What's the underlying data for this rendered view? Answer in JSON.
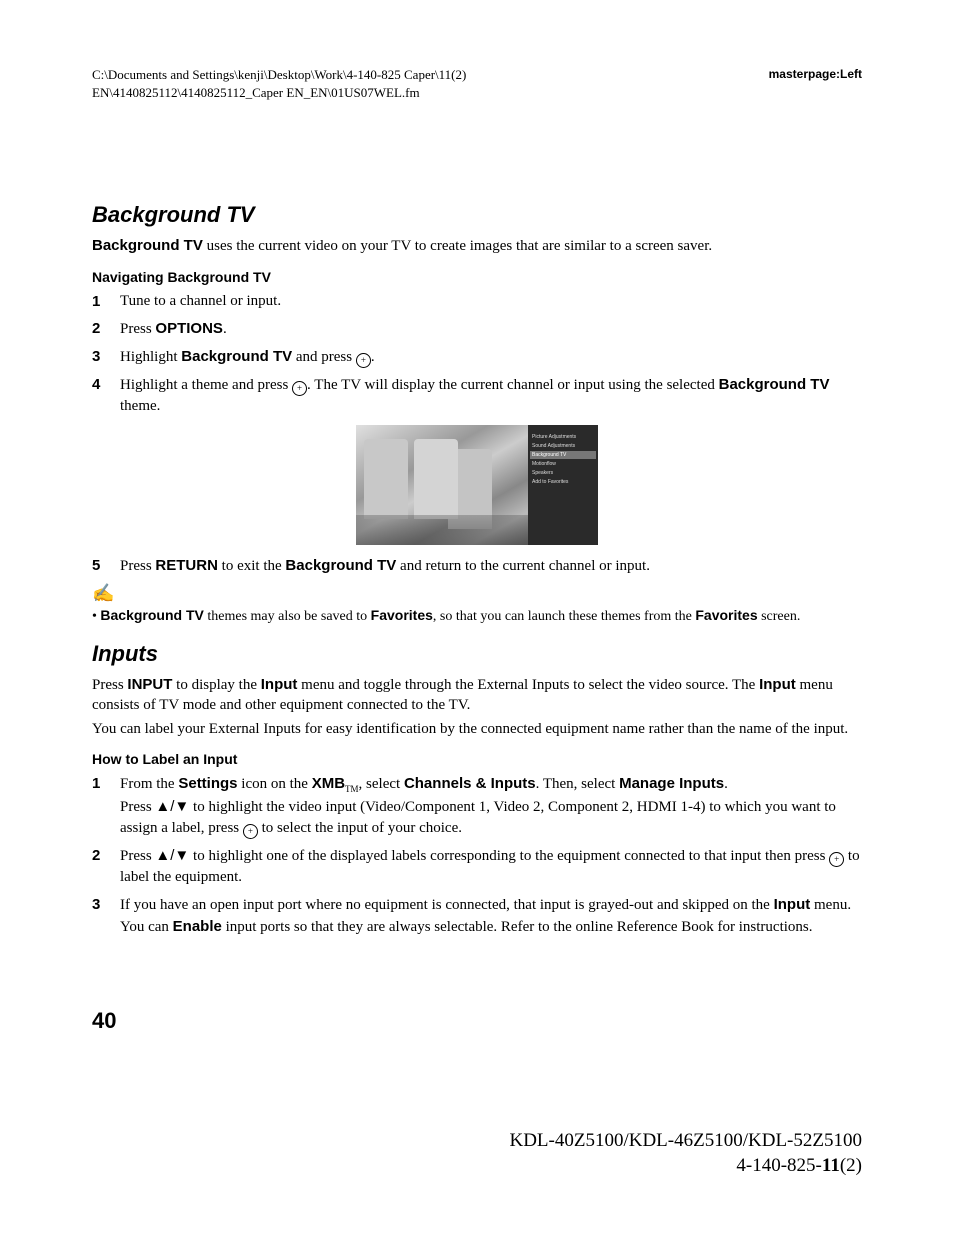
{
  "header": {
    "path_line1": "C:\\Documents and Settings\\kenji\\Desktop\\Work\\4-140-825 Caper\\11(2)",
    "path_line2": "EN\\4140825112\\4140825112_Caper EN_EN\\01US07WEL.fm",
    "master": "masterpage:Left"
  },
  "sections": {
    "bgtv": {
      "title": "Background TV",
      "intro_bold": "Background TV",
      "intro_rest": " uses the current video on your TV to create images that are similar to a screen saver.",
      "sub": "Navigating Background TV",
      "steps": [
        {
          "n": "1",
          "text_a": "Tune to a channel or input."
        },
        {
          "n": "2",
          "text_a": "Press ",
          "bold_a": "OPTIONS",
          "text_b": "."
        },
        {
          "n": "3",
          "text_a": "Highlight ",
          "bold_a": "Background TV",
          "text_b": " and press ",
          "icon": true,
          "text_c": "."
        },
        {
          "n": "4",
          "text_a": "Highlight a theme and press ",
          "icon": true,
          "text_b": ". The TV will display the current channel or input using the selected ",
          "bold_a": "Background TV",
          "text_c": " theme."
        },
        {
          "n": "5",
          "text_a": "Press ",
          "bold_a": "RETURN",
          "text_b": " to exit the ",
          "bold_b": "Background TV",
          "text_c": " and return to the current channel or input."
        }
      ],
      "note_icon": "✍",
      "note_pre": "• ",
      "note_b1": "Background TV",
      "note_t1": " themes may also be saved to ",
      "note_b2": "Favorites",
      "note_t2": ", so that you can launch these themes from the ",
      "note_b3": "Favorites",
      "note_t3": " screen.",
      "menu_items": [
        "Picture Adjustments",
        "Sound Adjustments",
        "Background TV",
        "Motionflow",
        "Speakers",
        "Add to Favorites"
      ],
      "menu_selected_index": 2
    },
    "inputs": {
      "title": "Inputs",
      "p1_a": "Press ",
      "p1_b1": "INPUT",
      "p1_b": " to display the ",
      "p1_b2": "Input",
      "p1_c": " menu and toggle through the External Inputs to select the video source. The ",
      "p1_b3": "Input",
      "p1_d": " menu consists of TV mode and other equipment connected to the TV.",
      "p2": "You can label your External Inputs for easy identification by the connected equipment name rather than the name of the input.",
      "sub": "How to Label an Input",
      "steps": [
        {
          "n": "1",
          "text_a": "From the ",
          "bold_a": "Settings",
          "text_b": " icon on the ",
          "bold_b": "XMB",
          "tm": "TM",
          "text_c": ", select ",
          "bold_c": "Channels & Inputs",
          "text_d": ". Then, select ",
          "bold_d": "Manage Inputs",
          "text_e": ".",
          "line2_a": "Press ",
          "line2_arrows": "♣/♦",
          "line2_b": " to highlight the video input (Video/Component 1, Video 2, Component 2, HDMI 1-4) to which you want to assign a label, press ",
          "line2_icon": true,
          "line2_c": " to select the input of your choice."
        },
        {
          "n": "2",
          "text_a": "Press ",
          "arrows": "♣/♦",
          "text_b": " to highlight one of the displayed labels corresponding to the equipment connected to that input then press ",
          "icon": true,
          "text_c": " to label the equipment."
        },
        {
          "n": "3",
          "text_a": "If you have an open input port where no equipment is connected, that input is grayed-out and skipped on the ",
          "bold_a": "Input",
          "text_b": " menu. You can ",
          "bold_b": "Enable",
          "text_c": " input ports so that they are always selectable. Refer to the online Reference Book for instructions."
        }
      ]
    }
  },
  "glyphs": {
    "plus": "+",
    "up": "▲",
    "down": "▼",
    "updown": "▲/▼"
  },
  "page_number": "40",
  "footer": {
    "line1": "KDL-40Z5100/KDL-46Z5100/KDL-52Z5100",
    "line2_a": "4-140-825-",
    "line2_b": "11",
    "line2_c": "(2)"
  }
}
